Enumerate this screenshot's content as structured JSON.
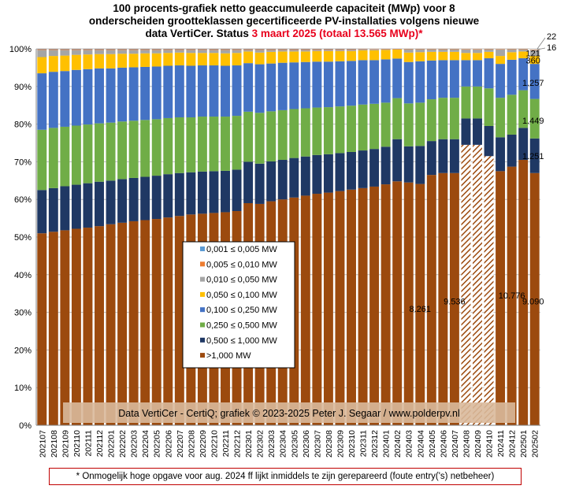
{
  "title": {
    "line1": "100 procents-grafiek netto geaccumuleerde capaciteit (MWp) voor 8",
    "line2": "onderscheiden grootteklassen gecertificeerde PV-installaties volgens nieuwe",
    "line3_start": "data VertiCer. Status ",
    "line3_highlight": "3 maart 2025 (totaal 13.565 MWp)*"
  },
  "footnote": "* Onmogelijk hoge opgave voor aug. 2024 ff lijkt inmiddels te zijn gerepareerd (foute entry('s) netbeheer)",
  "watermark": "Data VertiCer - CertiQ; grafiek © 2023-2025 Peter J. Segaar / www.polderpv.nl",
  "chart_data": {
    "type": "bar",
    "stacked": "100-percent",
    "ylim": [
      0,
      100
    ],
    "ytick_step": 10,
    "ytick_suffix": "%",
    "grid": true,
    "legend_placement": "center-left",
    "categories": [
      "202107",
      "202108",
      "202109",
      "202110",
      "202111",
      "202112",
      "202201",
      "202202",
      "202203",
      "202204",
      "202205",
      "202206",
      "202207",
      "202208",
      "202209",
      "202210",
      "202211",
      "202212",
      "202301",
      "202302",
      "202303",
      "202304",
      "202305",
      "202306",
      "202307",
      "202308",
      "202309",
      "202310",
      "202311",
      "202312",
      "202401",
      "202402",
      "202403",
      "202404",
      "202405",
      "202406",
      "202407",
      "202408",
      "202409",
      "202410",
      "202411",
      "202412",
      "202501",
      "202502"
    ],
    "hatched_categories": [
      "202408",
      "202409",
      "202410"
    ],
    "series": [
      {
        "name": ">1,000 MW",
        "color": "#9c4a0e",
        "values": [
          51,
          51.4,
          51.8,
          52.2,
          52.5,
          52.9,
          53.4,
          53.8,
          54.2,
          54.5,
          54.8,
          55.2,
          55.6,
          56,
          56.2,
          56.4,
          56.6,
          56.9,
          59,
          58.8,
          59.5,
          60,
          60.5,
          61,
          61.5,
          61.8,
          62.2,
          62.6,
          63,
          63.4,
          64,
          64.8,
          64.5,
          64.1,
          66.5,
          67,
          67,
          74.5,
          74.5,
          71.5,
          67.5,
          68.7,
          70.5,
          67
        ]
      },
      {
        "name": "0,500 ≤  1,000 MW",
        "color": "#1f3864",
        "values": [
          11.5,
          11.6,
          11.7,
          11.7,
          11.8,
          11.8,
          11.6,
          11.6,
          11.5,
          11.5,
          11.5,
          11.5,
          11.4,
          11.2,
          11.2,
          11.1,
          11,
          11,
          11,
          10.7,
          10.6,
          10.5,
          10.5,
          10.4,
          10.3,
          10.2,
          10.1,
          10,
          10,
          10,
          10,
          11.2,
          9.6,
          10.1,
          9,
          9,
          9,
          7,
          7,
          8,
          9,
          8.5,
          8.5,
          9.2
        ]
      },
      {
        "name": "0,250 ≤  0,500 MW",
        "color": "#70ad47",
        "values": [
          16,
          16,
          15.8,
          15.7,
          15.6,
          15.5,
          15.4,
          15.3,
          15.2,
          15.1,
          15,
          14.9,
          14.8,
          14.6,
          14.6,
          14.5,
          14.4,
          14.3,
          13.3,
          13.5,
          13.3,
          13.2,
          13,
          12.8,
          12.6,
          12.5,
          12.4,
          12.3,
          12.2,
          12,
          11.7,
          10.9,
          11.4,
          11.5,
          11.1,
          11,
          11,
          8.5,
          8.5,
          10,
          10.5,
          10.6,
          10,
          10.5
        ]
      },
      {
        "name": "0,100 ≤  0,250 MW",
        "color": "#4472c4",
        "values": [
          15,
          14.9,
          14.8,
          14.8,
          14.7,
          14.6,
          14.4,
          14.3,
          14.2,
          14.1,
          14,
          13.9,
          13.8,
          13.7,
          13.6,
          13.6,
          13.5,
          13.4,
          12.9,
          12.9,
          12.7,
          12.6,
          12.4,
          12.3,
          12.2,
          12.1,
          12,
          11.9,
          11.8,
          11.6,
          11.5,
          10.5,
          11,
          11,
          10.3,
          10,
          10,
          7,
          7,
          8,
          9,
          9.3,
          8.5,
          9.3
        ]
      },
      {
        "name": "0,050 ≤  0,100 MW",
        "color": "#ffc000",
        "values": [
          4.3,
          4.2,
          4.1,
          4,
          3.9,
          3.8,
          3.8,
          3.7,
          3.6,
          3.6,
          3.5,
          3.4,
          3.4,
          3.4,
          3.3,
          3.3,
          3.3,
          3.3,
          3.1,
          3.1,
          3.1,
          3,
          2.9,
          2.8,
          2.8,
          2.8,
          2.7,
          2.6,
          2.6,
          2.6,
          2.5,
          2.4,
          2.5,
          2.4,
          2.3,
          2.2,
          2.2,
          1.9,
          1.9,
          1.7,
          2.1,
          2,
          1.8,
          2.1
        ]
      },
      {
        "name": "0,010 ≤  0,050 MW",
        "color": "#a5a5a5",
        "values": [
          1.9,
          1.6,
          1.5,
          1.3,
          1.2,
          1.1,
          1.1,
          1,
          1,
          0.9,
          0.9,
          0.8,
          0.7,
          0.8,
          0.8,
          0.8,
          0.9,
          0.8,
          0.4,
          0.7,
          0.5,
          0.4,
          0.4,
          0.4,
          0.3,
          0.3,
          0.3,
          0.3,
          0.3,
          0.2,
          0.2,
          0.1,
          0.9,
          0.8,
          0.7,
          0.7,
          0.7,
          0.9,
          0.9,
          0.7,
          1.7,
          0.8,
          0.6,
          1.6
        ]
      },
      {
        "name": "0,005 ≤  0,010 MW",
        "color": "#ed7d31",
        "values": [
          0.2,
          0.2,
          0.2,
          0.2,
          0.2,
          0.2,
          0.2,
          0.2,
          0.2,
          0.2,
          0.2,
          0.2,
          0.2,
          0.2,
          0.2,
          0.2,
          0.2,
          0.2,
          0.2,
          0.2,
          0.2,
          0.2,
          0.2,
          0.2,
          0.2,
          0.2,
          0.2,
          0.2,
          0.1,
          0.1,
          0.1,
          0.1,
          0.1,
          0.1,
          0.1,
          0.1,
          0.1,
          0.1,
          0.1,
          0.1,
          0.1,
          0.1,
          0.1,
          0.1
        ]
      },
      {
        "name": "0,001 ≤  0,005 MW",
        "color": "#5b9bd5",
        "values": [
          0.1,
          0.1,
          0.1,
          0.1,
          0.1,
          0.1,
          0.1,
          0.1,
          0.1,
          0.1,
          0.1,
          0.1,
          0.1,
          0.1,
          0.1,
          0.1,
          0.1,
          0.1,
          0.1,
          0.1,
          0.1,
          0.1,
          0.1,
          0.1,
          0.1,
          0.1,
          0.1,
          0.1,
          0.0,
          0.0,
          0.0,
          0.0,
          0.0,
          0.0,
          0.0,
          0.0,
          0.0,
          0.0,
          0.0,
          0.0,
          0.0,
          0.0,
          0.0,
          0.0
        ]
      }
    ],
    "annotations": [
      {
        "text": "8.261",
        "category": "202404",
        "y": 31
      },
      {
        "text": "9.536",
        "category": "202407",
        "y": 33
      },
      {
        "text": "10.776",
        "category": "202412",
        "y": 34.5
      },
      {
        "text": "9.090",
        "category": "202502",
        "y": 33
      },
      {
        "text": "1.251",
        "category": "202502",
        "y": 71.5
      },
      {
        "text": "1.449",
        "category": "202502",
        "y": 81
      },
      {
        "text": "1.257",
        "category": "202502",
        "y": 91
      },
      {
        "text": "360",
        "category": "202502",
        "y": 97
      },
      {
        "text": "121",
        "category": "202502",
        "y": 98.8
      },
      {
        "text": "16",
        "category": "202502",
        "y": 100,
        "outside": true
      },
      {
        "text": "22",
        "category": "202502",
        "y": 102,
        "outside": true
      }
    ]
  }
}
